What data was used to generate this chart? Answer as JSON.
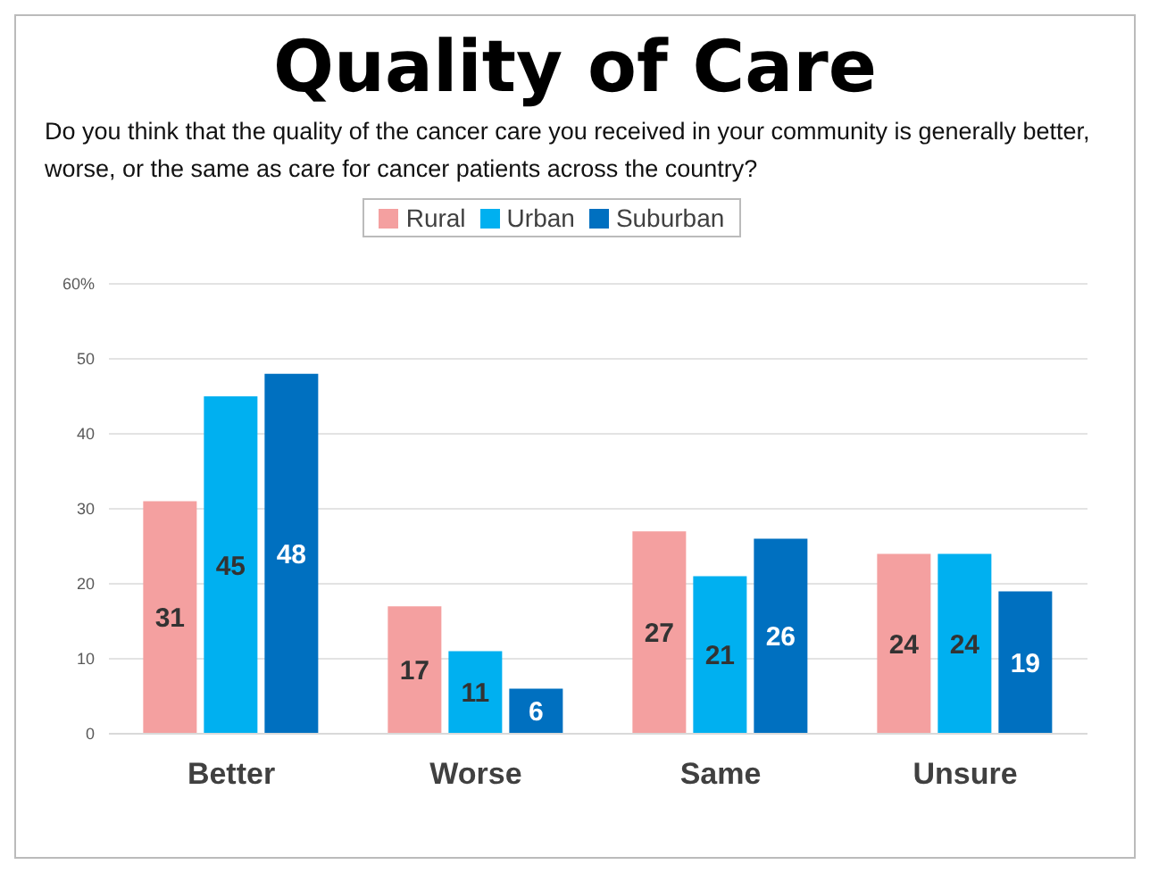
{
  "chart_data": {
    "type": "bar",
    "title": "Quality of Care",
    "subtitle": "Do you think that the quality of the cancer care you received in your community is generally better, worse, or the same as care for cancer patients across the country?",
    "categories": [
      "Better",
      "Worse",
      "Same",
      "Unsure"
    ],
    "series": [
      {
        "name": "Rural",
        "color": "#f4a0a0",
        "values": [
          31,
          17,
          27,
          24
        ]
      },
      {
        "name": "Urban",
        "color": "#00b0f0",
        "values": [
          45,
          11,
          21,
          24
        ]
      },
      {
        "name": "Suburban",
        "color": "#0070c0",
        "values": [
          48,
          6,
          26,
          19
        ]
      }
    ],
    "ylim": [
      0,
      60
    ],
    "yticks": [
      0,
      10,
      20,
      30,
      40,
      50,
      {
        "value": 60,
        "label": "60%"
      }
    ],
    "grid": "y",
    "legend": "top",
    "data_labels": true
  }
}
